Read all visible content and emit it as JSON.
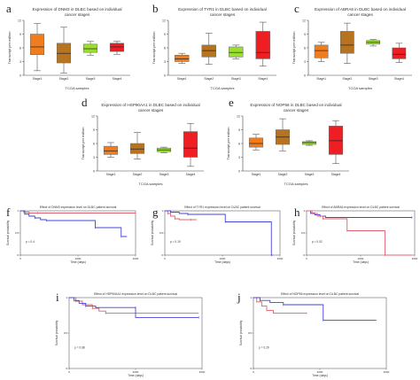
{
  "colors": {
    "orange": "#f07d1d",
    "brown": "#b8731e",
    "green": "#9adf2e",
    "red": "#ee1e22",
    "blue": "#4444d8",
    "pink": "#e06070",
    "axis": "#444444"
  },
  "chart_data": [
    {
      "panel": "a",
      "type": "box",
      "title": "Expression of DNM3 in DLBC based on individual cancer stages",
      "ylabel": "Transcript per million",
      "xlabel": "TCGA samples",
      "ylim": [
        0,
        12
      ],
      "categories": [
        "Stage1",
        "Stage2",
        "Stage3",
        "Stage4"
      ],
      "boxes": [
        {
          "min": 1.0,
          "q1": 4.5,
          "median": 6.2,
          "q3": 9.0,
          "max": 11.3,
          "color": "#f07d1d"
        },
        {
          "min": 0.5,
          "q1": 2.7,
          "median": 4.8,
          "q3": 7.0,
          "max": 10.5,
          "color": "#b8731e"
        },
        {
          "min": 4.4,
          "q1": 5.0,
          "median": 5.8,
          "q3": 6.8,
          "max": 7.4,
          "color": "#9adf2e"
        },
        {
          "min": 4.6,
          "q1": 5.2,
          "median": 6.2,
          "q3": 7.0,
          "max": 7.4,
          "color": "#ee1e22"
        }
      ]
    },
    {
      "panel": "b",
      "type": "box",
      "title": "Expression of TYR1 in DLBC based on individual cancer stages",
      "ylabel": "Transcript per million",
      "xlabel": "TCGA samples",
      "ylim": [
        0,
        12
      ],
      "categories": [
        "Stage1",
        "Stage2",
        "Stage3",
        "Stage4"
      ],
      "boxes": [
        {
          "min": 2.6,
          "q1": 3.0,
          "median": 3.6,
          "q3": 4.4,
          "max": 4.8,
          "color": "#f07d1d"
        },
        {
          "min": 2.4,
          "q1": 4.0,
          "median": 5.4,
          "q3": 6.6,
          "max": 9.2,
          "color": "#b8731e"
        },
        {
          "min": 3.6,
          "q1": 4.0,
          "median": 5.0,
          "q3": 6.2,
          "max": 6.6,
          "color": "#9adf2e"
        },
        {
          "min": 2.0,
          "q1": 3.6,
          "median": 5.0,
          "q3": 9.6,
          "max": 11.6,
          "color": "#ee1e22"
        }
      ]
    },
    {
      "panel": "c",
      "type": "box",
      "title": "Expression of ABRA6 in DLBC based on individual cancer stages",
      "ylabel": "Transcript per million",
      "xlabel": "TCGA samples",
      "ylim": [
        0,
        12
      ],
      "categories": [
        "Stage1",
        "Stage2",
        "Stage3",
        "Stage4"
      ],
      "boxes": [
        {
          "min": 3.0,
          "q1": 3.8,
          "median": 5.4,
          "q3": 6.6,
          "max": 7.2,
          "color": "#f07d1d"
        },
        {
          "min": 2.6,
          "q1": 4.8,
          "median": 6.6,
          "q3": 9.6,
          "max": 11.4,
          "color": "#b8731e"
        },
        {
          "min": 6.4,
          "q1": 6.8,
          "median": 7.2,
          "q3": 7.6,
          "max": 7.8,
          "color": "#9adf2e"
        },
        {
          "min": 2.8,
          "q1": 3.6,
          "median": 4.6,
          "q3": 6.0,
          "max": 7.0,
          "color": "#ee1e22"
        }
      ]
    },
    {
      "panel": "d",
      "type": "box",
      "title": "Expression of HSP90AA1 in DLBC based on individual cancer stages",
      "ylabel": "Transcript per million",
      "xlabel": "TCGA samples",
      "ylim": [
        0,
        12
      ],
      "categories": [
        "Stage1",
        "Stage2",
        "Stage3",
        "Stage4"
      ],
      "boxes": [
        {
          "min": 3.0,
          "q1": 3.6,
          "median": 4.4,
          "q3": 5.4,
          "max": 6.2,
          "color": "#f07d1d"
        },
        {
          "min": 2.6,
          "q1": 3.8,
          "median": 4.8,
          "q3": 6.0,
          "max": 8.4,
          "color": "#b8731e"
        },
        {
          "min": 4.0,
          "q1": 4.2,
          "median": 4.6,
          "q3": 5.0,
          "max": 5.2,
          "color": "#9adf2e"
        },
        {
          "min": 1.0,
          "q1": 3.0,
          "median": 5.0,
          "q3": 8.6,
          "max": 10.4,
          "color": "#ee1e22"
        }
      ]
    },
    {
      "panel": "e",
      "type": "box",
      "title": "Expression of NOP56 in DLBC based on individual cancer stages",
      "ylabel": "Transcript per million",
      "xlabel": "TCGA samples",
      "ylim": [
        0,
        12
      ],
      "categories": [
        "Stage1",
        "Stage2",
        "Stage3",
        "Stage4"
      ],
      "boxes": [
        {
          "min": 4.6,
          "q1": 5.2,
          "median": 6.0,
          "q3": 7.2,
          "max": 8.0,
          "color": "#f07d1d"
        },
        {
          "min": 4.4,
          "q1": 5.8,
          "median": 7.4,
          "q3": 9.0,
          "max": 11.4,
          "color": "#b8731e"
        },
        {
          "min": 5.6,
          "q1": 5.8,
          "median": 6.2,
          "q3": 6.4,
          "max": 6.6,
          "color": "#9adf2e"
        },
        {
          "min": 1.6,
          "q1": 3.6,
          "median": 6.6,
          "q3": 9.8,
          "max": 11.0,
          "color": "#ee1e22"
        }
      ]
    },
    {
      "panel": "f",
      "type": "line",
      "title": "Effect of DNM3 expression level on DLBC patient survival",
      "ylabel": "Survival probability",
      "xlabel": "Time (days)",
      "pvalue": "p = 0.4",
      "xlim": [
        0,
        4000
      ],
      "ylim": [
        0,
        1
      ],
      "series": [
        {
          "color": "#e06070",
          "x": [
            0,
            120,
            300,
            600,
            4000
          ],
          "y": [
            1.0,
            0.97,
            0.95,
            0.95,
            0.95
          ]
        },
        {
          "color": "#4444d8",
          "x": [
            0,
            150,
            300,
            500,
            700,
            900,
            2600,
            2600,
            3500,
            3500,
            3700
          ],
          "y": [
            1.0,
            0.93,
            0.88,
            0.84,
            0.8,
            0.78,
            0.78,
            0.62,
            0.62,
            0.42,
            0.42
          ]
        }
      ]
    },
    {
      "panel": "g",
      "type": "line",
      "title": "Effect of TYR1 expression level on DLBC patient survival",
      "ylabel": "Survival probability",
      "xlabel": "Time (days)",
      "pvalue": "p = 0.19",
      "xlim": [
        0,
        4000
      ],
      "ylim": [
        0,
        1
      ],
      "series": [
        {
          "color": "#e06070",
          "x": [
            0,
            100,
            200,
            350,
            500,
            900,
            1100
          ],
          "y": [
            1.0,
            0.94,
            0.88,
            0.82,
            0.8,
            0.8,
            0.8
          ]
        },
        {
          "color": "#4444d8",
          "x": [
            0,
            200,
            500,
            800,
            2100,
            2100,
            3700,
            3700,
            3750
          ],
          "y": [
            1.0,
            0.97,
            0.94,
            0.92,
            0.92,
            0.75,
            0.75,
            0.0,
            0.0
          ]
        }
      ]
    },
    {
      "panel": "h",
      "type": "line",
      "title": "Effect of ABRA6 expression level on DLBC patient survival",
      "ylabel": "Survival probability",
      "xlabel": "Time (days)",
      "pvalue": "p = 0.02",
      "xlim": [
        0,
        4000
      ],
      "ylim": [
        0,
        1
      ],
      "series": [
        {
          "color": "#4444d8",
          "x": [
            0,
            150,
            300,
            500,
            700,
            3900
          ],
          "y": [
            1.0,
            0.95,
            0.91,
            0.88,
            0.85,
            0.85
          ]
        },
        {
          "color": "#e06070",
          "x": [
            0,
            200,
            400,
            600,
            1500,
            1500,
            2900,
            2900,
            3900
          ],
          "y": [
            1.0,
            0.94,
            0.88,
            0.82,
            0.82,
            0.55,
            0.55,
            0.0,
            0.0
          ]
        }
      ]
    },
    {
      "panel": "i",
      "type": "line",
      "title": "Effect of HSP90AA1 expression level on DLBC patient survival",
      "ylabel": "Survival probability",
      "xlabel": "Time (days)",
      "pvalue": "p = 0.88",
      "xlim": [
        0,
        4000
      ],
      "ylim": [
        0,
        1
      ],
      "series": [
        {
          "color": "#e06070",
          "x": [
            0,
            200,
            400,
            700,
            900,
            1100,
            3900
          ],
          "y": [
            1.0,
            0.95,
            0.9,
            0.85,
            0.81,
            0.78,
            0.78
          ]
        },
        {
          "color": "#4444d8",
          "x": [
            0,
            150,
            300,
            500,
            800,
            2000,
            2000,
            3900
          ],
          "y": [
            1.0,
            0.96,
            0.92,
            0.88,
            0.86,
            0.86,
            0.72,
            0.72
          ]
        }
      ]
    },
    {
      "panel": "j",
      "type": "line",
      "title": "Effect of NOP56 expression level on DLBC patient survival",
      "ylabel": "Survival probability",
      "xlabel": "Time (days)",
      "pvalue": "p = 0.29",
      "xlim": [
        0,
        4000
      ],
      "ylim": [
        0,
        1
      ],
      "series": [
        {
          "color": "#e06070",
          "x": [
            0,
            100,
            250,
            400,
            600,
            1600
          ],
          "y": [
            1.0,
            0.94,
            0.88,
            0.82,
            0.78,
            0.78
          ]
        },
        {
          "color": "#4444d8",
          "x": [
            0,
            200,
            500,
            900,
            2100,
            2100,
            3700
          ],
          "y": [
            1.0,
            0.96,
            0.93,
            0.9,
            0.9,
            0.68,
            0.68
          ]
        }
      ]
    }
  ]
}
